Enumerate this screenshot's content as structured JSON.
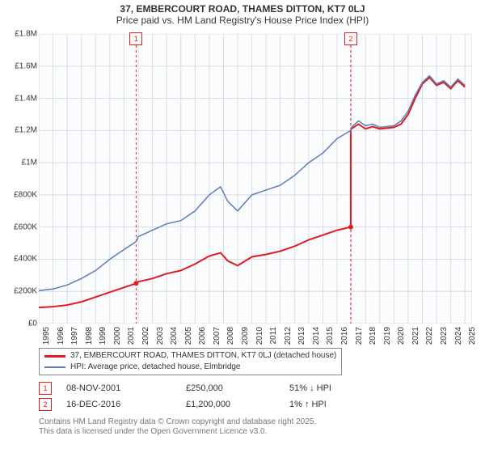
{
  "title_line1": "37, EMBERCOURT ROAD, THAMES DITTON, KT7 0LJ",
  "title_line2": "Price paid vs. HM Land Registry's House Price Index (HPI)",
  "chart": {
    "type": "line",
    "background_color": "#ffffff",
    "plot_background_color": "#fbfcfd",
    "grid_color": "#d8dde2",
    "xlim": [
      1995,
      2025.5
    ],
    "ylim": [
      0,
      1800000
    ],
    "ytick_step": 200000,
    "yticks": [
      "£0",
      "£200K",
      "£400K",
      "£600K",
      "£800K",
      "£1M",
      "£1.2M",
      "£1.4M",
      "£1.6M",
      "£1.8M"
    ],
    "xticks": [
      1995,
      1996,
      1997,
      1998,
      1999,
      2000,
      2001,
      2002,
      2003,
      2004,
      2005,
      2006,
      2007,
      2008,
      2009,
      2010,
      2011,
      2012,
      2013,
      2014,
      2015,
      2016,
      2017,
      2018,
      2019,
      2020,
      2021,
      2022,
      2023,
      2024,
      2025
    ],
    "axis_fontsize": 10,
    "series": [
      {
        "name": "property",
        "label": "37, EMBERCOURT ROAD, THAMES DITTON, KT7 0LJ (detached house)",
        "color": "#e11b22",
        "line_width": 2,
        "points": [
          [
            1995,
            100000
          ],
          [
            1996,
            105000
          ],
          [
            1997,
            115000
          ],
          [
            1998,
            135000
          ],
          [
            1999,
            165000
          ],
          [
            2000,
            195000
          ],
          [
            2001,
            225000
          ],
          [
            2001.85,
            250000
          ],
          [
            2002,
            260000
          ],
          [
            2003,
            280000
          ],
          [
            2004,
            310000
          ],
          [
            2005,
            330000
          ],
          [
            2006,
            370000
          ],
          [
            2007,
            420000
          ],
          [
            2007.8,
            440000
          ],
          [
            2008.3,
            390000
          ],
          [
            2009,
            360000
          ],
          [
            2010,
            415000
          ],
          [
            2011,
            430000
          ],
          [
            2012,
            450000
          ],
          [
            2013,
            480000
          ],
          [
            2014,
            520000
          ],
          [
            2015,
            550000
          ],
          [
            2016,
            580000
          ],
          [
            2016.96,
            600000
          ],
          [
            2016.961,
            1200000
          ],
          [
            2017,
            1210000
          ],
          [
            2017.5,
            1240000
          ],
          [
            2018,
            1210000
          ],
          [
            2018.5,
            1225000
          ],
          [
            2019,
            1210000
          ],
          [
            2020,
            1220000
          ],
          [
            2020.5,
            1240000
          ],
          [
            2021,
            1300000
          ],
          [
            2021.5,
            1400000
          ],
          [
            2022,
            1490000
          ],
          [
            2022.5,
            1530000
          ],
          [
            2023,
            1480000
          ],
          [
            2023.5,
            1500000
          ],
          [
            2024,
            1460000
          ],
          [
            2024.5,
            1510000
          ],
          [
            2025,
            1470000
          ]
        ]
      },
      {
        "name": "hpi",
        "label": "HPI: Average price, detached house, Elmbridge",
        "color": "#5a7fb8",
        "line_width": 1.5,
        "points": [
          [
            1995,
            205000
          ],
          [
            1996,
            215000
          ],
          [
            1997,
            240000
          ],
          [
            1998,
            280000
          ],
          [
            1999,
            330000
          ],
          [
            2000,
            400000
          ],
          [
            2001,
            460000
          ],
          [
            2001.85,
            510000
          ],
          [
            2002,
            540000
          ],
          [
            2003,
            580000
          ],
          [
            2004,
            620000
          ],
          [
            2005,
            640000
          ],
          [
            2006,
            700000
          ],
          [
            2007,
            800000
          ],
          [
            2007.8,
            850000
          ],
          [
            2008.3,
            760000
          ],
          [
            2009,
            700000
          ],
          [
            2010,
            800000
          ],
          [
            2011,
            830000
          ],
          [
            2012,
            860000
          ],
          [
            2013,
            920000
          ],
          [
            2014,
            1000000
          ],
          [
            2015,
            1060000
          ],
          [
            2016,
            1150000
          ],
          [
            2016.96,
            1200000
          ],
          [
            2017,
            1220000
          ],
          [
            2017.5,
            1260000
          ],
          [
            2018,
            1230000
          ],
          [
            2018.5,
            1240000
          ],
          [
            2019,
            1220000
          ],
          [
            2020,
            1230000
          ],
          [
            2020.5,
            1260000
          ],
          [
            2021,
            1320000
          ],
          [
            2021.5,
            1420000
          ],
          [
            2022,
            1500000
          ],
          [
            2022.5,
            1540000
          ],
          [
            2023,
            1490000
          ],
          [
            2023.5,
            1510000
          ],
          [
            2024,
            1470000
          ],
          [
            2024.5,
            1520000
          ],
          [
            2025,
            1480000
          ]
        ]
      }
    ],
    "sale_markers": [
      {
        "n": "1",
        "x": 2001.85,
        "color": "#e11b22"
      },
      {
        "n": "2",
        "x": 2016.96,
        "color": "#e11b22"
      }
    ]
  },
  "legend": {
    "border_color": "#888888",
    "items": [
      {
        "color": "#e11b22",
        "label": "37, EMBERCOURT ROAD, THAMES DITTON, KT7 0LJ (detached house)"
      },
      {
        "color": "#5a7fb8",
        "label": "HPI: Average price, detached house, Elmbridge"
      }
    ]
  },
  "sales": [
    {
      "n": "1",
      "date": "08-NOV-2001",
      "price": "£250,000",
      "delta": "51% ↓ HPI",
      "marker_color": "#e11b22"
    },
    {
      "n": "2",
      "date": "16-DEC-2016",
      "price": "£1,200,000",
      "delta": "1% ↑ HPI",
      "marker_color": "#e11b22"
    }
  ],
  "disclaimer_line1": "Contains HM Land Registry data © Crown copyright and database right 2025.",
  "disclaimer_line2": "This data is licensed under the Open Government Licence v3.0."
}
